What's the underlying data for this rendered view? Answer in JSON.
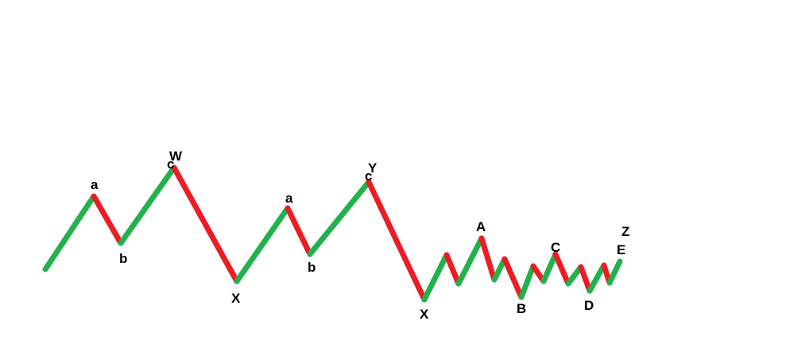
{
  "colors": {
    "up": "#22b14c",
    "down": "#ed1c24",
    "label": "#000000",
    "background": "#ffffff"
  },
  "labels": {
    "w_a": "a",
    "w_b": "b",
    "w_c": "c",
    "w": "W",
    "x1": "X",
    "y_a": "a",
    "y_b": "b",
    "y_c": "c",
    "y": "Y",
    "x2": "X",
    "z_a": "A",
    "z_b": "B",
    "z_c": "C",
    "z_d": "D",
    "z_e": "E",
    "z": "Z"
  }
}
